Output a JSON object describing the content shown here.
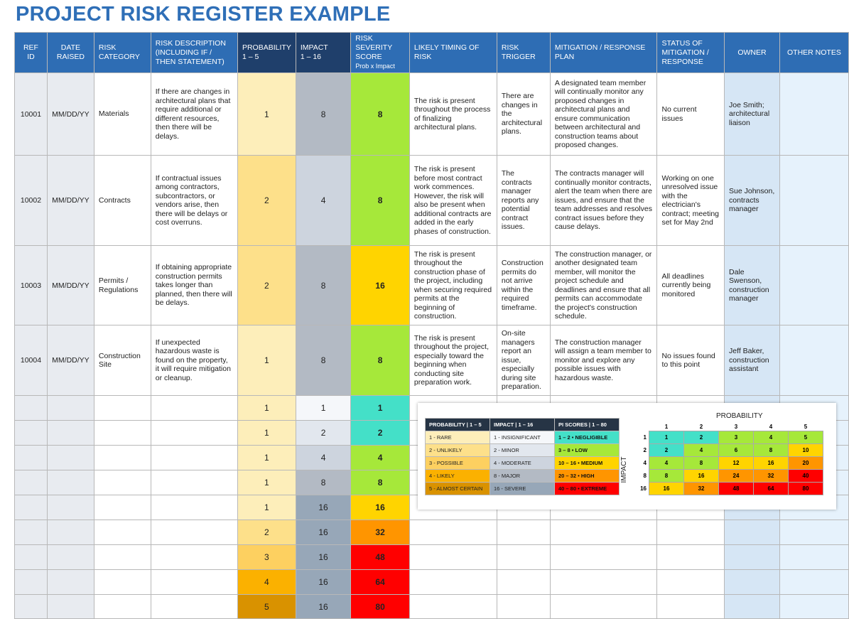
{
  "title": "PROJECT RISK REGISTER EXAMPLE",
  "colors": {
    "header": "#2e6db4",
    "header_dark": "#1f3f6b",
    "probability": {
      "1": "#fdeeba",
      "2": "#fde08a",
      "3": "#fdd060",
      "4": "#fbb100",
      "5": "#d99200"
    },
    "impact": {
      "1": "#f5f7fa",
      "2": "#e2e7ee",
      "4": "#cdd4de",
      "8": "#b3bac4",
      "16": "#97a7b8"
    },
    "score": {
      "negligible": "#44e0c8",
      "low": "#a6e83a",
      "medium": "#ffd400",
      "high": "#ff9500",
      "extreme": "#ff0000"
    }
  },
  "headers": [
    {
      "l1": "REF",
      "l2": "ID"
    },
    {
      "l1": "DATE",
      "l2": "RAISED"
    },
    {
      "l1": "RISK",
      "l2": "CATEGORY"
    },
    {
      "l1": "RISK DESCRIPTION (INCLUDING IF / THEN STATEMENT)",
      "l2": ""
    },
    {
      "l1": "PROBABILITY",
      "l2": "1 – 5"
    },
    {
      "l1": "IMPACT",
      "l2": "1 – 16"
    },
    {
      "l1": "RISK SEVERITY SCORE",
      "l2": "Prob x Impact"
    },
    {
      "l1": "LIKELY TIMING OF RISK",
      "l2": ""
    },
    {
      "l1": "RISK TRIGGER",
      "l2": ""
    },
    {
      "l1": "MITIGATION / RESPONSE PLAN",
      "l2": ""
    },
    {
      "l1": "STATUS OF MITIGATION / RESPONSE",
      "l2": ""
    },
    {
      "l1": "OWNER",
      "l2": ""
    },
    {
      "l1": "OTHER NOTES",
      "l2": ""
    }
  ],
  "rows": [
    {
      "ref": "10001",
      "date": "MM/DD/YY",
      "category": "Materials",
      "description": "If there are changes in architectural plans that require additional or different resources, then there will be delays.",
      "probability": "1",
      "impact": "8",
      "score": "8",
      "timing": "The risk is present throughout the process of finalizing architectural plans.",
      "trigger": "There are changes in the architectural plans.",
      "mitigation": "A designated team member will continually monitor any proposed changes in architectural plans and ensure communication between architectural and construction teams about proposed changes.",
      "status": "No current issues",
      "owner": "Joe Smith; architectural liaison",
      "notes": ""
    },
    {
      "ref": "10002",
      "date": "MM/DD/YY",
      "category": "Contracts",
      "description": "If contractual issues among contractors, subcontractors, or vendors arise, then there will be delays or cost overruns.",
      "probability": "2",
      "impact": "4",
      "score": "8",
      "timing": "The risk is present before most contract work commences. However, the risk will also be present when additional contracts are added in the early phases of construction.",
      "trigger": "The contracts manager reports any potential contract issues.",
      "mitigation": "The contracts manager will continually monitor contracts, alert the team when there are issues, and ensure that the team addresses and resolves contract issues before they cause delays.",
      "status": "Working on one unresolved issue with the electrician's contract; meeting set for May 2nd",
      "owner": "Sue Johnson, contracts manager",
      "notes": ""
    },
    {
      "ref": "10003",
      "date": "MM/DD/YY",
      "category": "Permits / Regulations",
      "description": "If obtaining appropriate construction permits takes longer than planned, then there will be delays.",
      "probability": "2",
      "impact": "8",
      "score": "16",
      "timing": "The risk is present throughout the construction phase of the project, including when securing required permits at the beginning of construction.",
      "trigger": "Construction permits do not arrive within the required timeframe.",
      "mitigation": "The construction manager, or another designated team member, will monitor the project schedule and deadlines and ensure that all permits can accommodate the project's construction schedule.",
      "status": "All deadlines currently being monitored",
      "owner": "Dale Swenson, construction manager",
      "notes": ""
    },
    {
      "ref": "10004",
      "date": "MM/DD/YY",
      "category": "Construction Site",
      "description": "If unexpected hazardous waste is found on the property, it will require mitigation or cleanup.",
      "probability": "1",
      "impact": "8",
      "score": "8",
      "timing": "The risk is present throughout the project, especially toward the beginning when conducting site preparation work.",
      "trigger": "On-site managers report an issue, especially during site preparation.",
      "mitigation": "The construction manager will assign a team member to monitor and explore any possible issues with hazardous waste.",
      "status": "No issues found to this point",
      "owner": "Jeff Baker, construction assistant",
      "notes": ""
    },
    {
      "probability": "1",
      "impact": "1",
      "score": "1"
    },
    {
      "probability": "1",
      "impact": "2",
      "score": "2"
    },
    {
      "probability": "1",
      "impact": "4",
      "score": "4"
    },
    {
      "probability": "1",
      "impact": "8",
      "score": "8"
    },
    {
      "probability": "1",
      "impact": "16",
      "score": "16"
    },
    {
      "probability": "2",
      "impact": "16",
      "score": "32"
    },
    {
      "probability": "3",
      "impact": "16",
      "score": "48"
    },
    {
      "probability": "4",
      "impact": "16",
      "score": "64"
    },
    {
      "probability": "5",
      "impact": "16",
      "score": "80"
    }
  ],
  "legend": {
    "headers": [
      "PROBABILITY | 1 – 5",
      "IMPACT | 1 – 16",
      "PI SCORES | 1 – 80"
    ],
    "rows": [
      {
        "p": "1 - RARE",
        "i": "1 - INSIGNIFICANT",
        "s": "1 – 2 • NEGLIGIBLE",
        "pk": "1",
        "ik": "1",
        "sk": "negligible"
      },
      {
        "p": "2 - UNLIKELY",
        "i": "2 - MINOR",
        "s": "3 – 8 • LOW",
        "pk": "2",
        "ik": "2",
        "sk": "low"
      },
      {
        "p": "3 - POSSIBLE",
        "i": "4 - MODERATE",
        "s": "10 – 16 • MEDIUM",
        "pk": "3",
        "ik": "4",
        "sk": "medium"
      },
      {
        "p": "4 - LIKELY",
        "i": "8 - MAJOR",
        "s": "20 – 32 • HIGH",
        "pk": "4",
        "ik": "8",
        "sk": "high"
      },
      {
        "p": "5 - ALMOST CERTAIN",
        "i": "16 - SEVERE",
        "s": "40 – 80 • EXTREME",
        "pk": "5",
        "ik": "16",
        "sk": "extreme"
      }
    ]
  },
  "matrix": {
    "x_label": "PROBABILITY",
    "y_label": "IMPACT",
    "probabilities": [
      "1",
      "2",
      "3",
      "4",
      "5"
    ],
    "impacts": [
      "1",
      "2",
      "4",
      "8",
      "16"
    ],
    "values": [
      [
        "1",
        "2",
        "3",
        "4",
        "5"
      ],
      [
        "2",
        "4",
        "6",
        "8",
        "10"
      ],
      [
        "4",
        "8",
        "12",
        "16",
        "20"
      ],
      [
        "8",
        "16",
        "24",
        "32",
        "40"
      ],
      [
        "16",
        "32",
        "48",
        "64",
        "80"
      ]
    ]
  }
}
